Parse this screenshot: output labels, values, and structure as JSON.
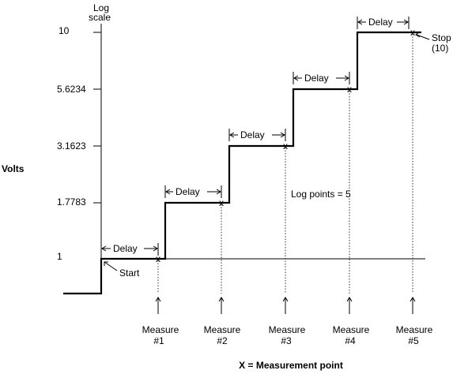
{
  "axis": {
    "log_label_line1": "Log",
    "log_label_line2": "scale",
    "y_title": "Volts",
    "ticks": [
      "10",
      "5.6234",
      "3.1623",
      "1.7783",
      "1"
    ]
  },
  "delay_label": "Delay",
  "start_label": "Start",
  "stop_label_line1": "Stop",
  "stop_label_line2": "(10)",
  "log_points_label": "Log points = 5",
  "measure_word": "Measure",
  "measure_numbers": [
    "#1",
    "#2",
    "#3",
    "#4",
    "#5"
  ],
  "footer_label": "X = Measurement point",
  "marker_glyph": "x"
}
